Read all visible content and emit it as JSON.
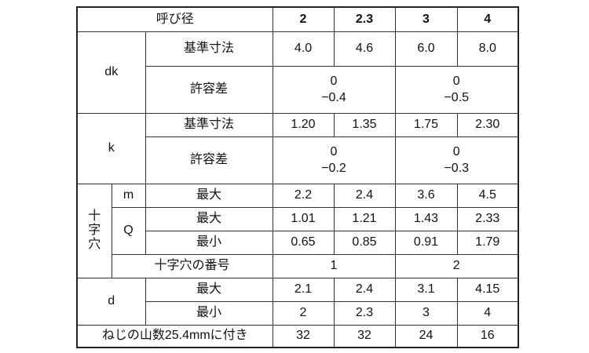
{
  "header": {
    "label": "呼び径",
    "sizes": [
      "2",
      "2.3",
      "3",
      "4"
    ]
  },
  "dk": {
    "label": "dk",
    "basic_label": "基準寸法",
    "basic": [
      "4.0",
      "4.6",
      "6.0",
      "8.0"
    ],
    "tol_label": "許容差",
    "tol": [
      {
        "upper": "0",
        "lower": "−0.4"
      },
      {
        "upper": "0",
        "lower": "−0.5"
      }
    ]
  },
  "k": {
    "label": "k",
    "basic_label": "基準寸法",
    "basic": [
      "1.20",
      "1.35",
      "1.75",
      "2.30"
    ],
    "tol_label": "許容差",
    "tol": [
      {
        "upper": "0",
        "lower": "−0.2"
      },
      {
        "upper": "0",
        "lower": "−0.3"
      }
    ]
  },
  "recess": {
    "label_chars": [
      "十",
      "字",
      "穴"
    ],
    "m": {
      "label": "m",
      "max_label": "最大",
      "max": [
        "2.2",
        "2.4",
        "3.6",
        "4.5"
      ]
    },
    "q": {
      "label": "Q",
      "max_label": "最大",
      "max": [
        "1.01",
        "1.21",
        "1.43",
        "2.33"
      ],
      "min_label": "最小",
      "min": [
        "0.65",
        "0.85",
        "0.91",
        "1.79"
      ]
    },
    "number": {
      "label": "十字穴の番号",
      "values": [
        "1",
        "2"
      ]
    }
  },
  "d": {
    "label": "d",
    "max_label": "最大",
    "max": [
      "2.1",
      "2.4",
      "3.1",
      "4.15"
    ],
    "min_label": "最小",
    "min": [
      "2",
      "2.3",
      "3",
      "4"
    ]
  },
  "threads": {
    "label": "ねじの山数25.4mmに付き",
    "values": [
      "32",
      "32",
      "24",
      "16"
    ]
  }
}
